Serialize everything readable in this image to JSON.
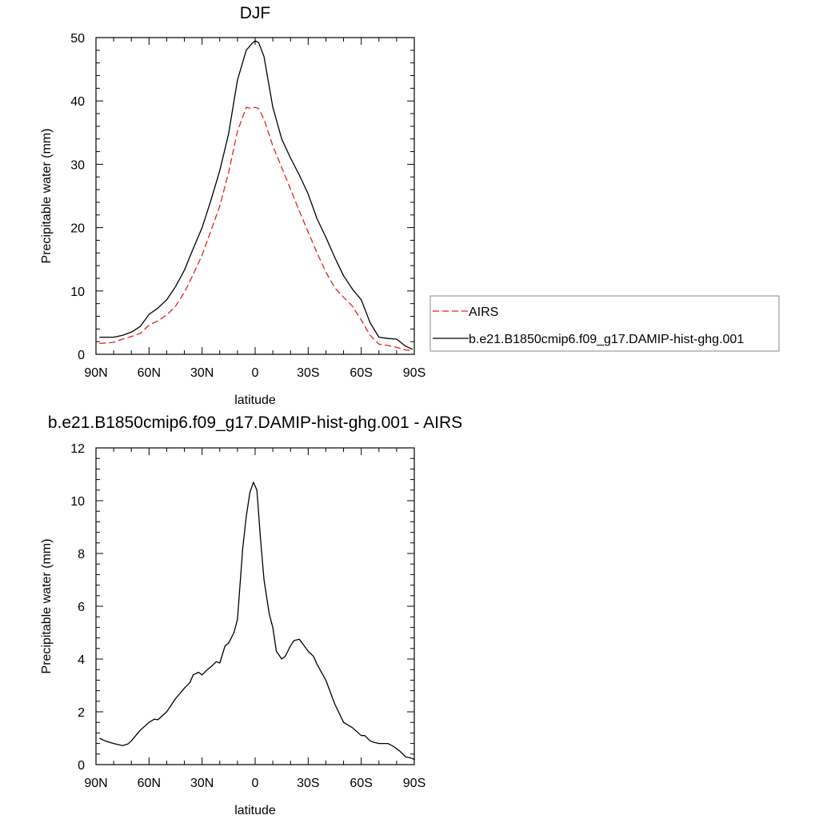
{
  "chart_data": [
    {
      "type": "line",
      "title": "DJF",
      "xlabel": "latitude",
      "ylabel": "Precipitable water (mm)",
      "xlim": [
        90,
        -90
      ],
      "ylim": [
        0,
        50
      ],
      "x_ticks": [
        {
          "value": 90,
          "label": "90N"
        },
        {
          "value": 60,
          "label": "60N"
        },
        {
          "value": 30,
          "label": "30N"
        },
        {
          "value": 0,
          "label": "0"
        },
        {
          "value": -30,
          "label": "30S"
        },
        {
          "value": -60,
          "label": "60S"
        },
        {
          "value": -90,
          "label": "90S"
        }
      ],
      "y_ticks": [
        0,
        10,
        20,
        30,
        40,
        50
      ],
      "legend_position": "right",
      "series": [
        {
          "name": "AIRS",
          "color": "#e8201f",
          "dash": "dashed",
          "x": [
            88,
            80,
            75,
            70,
            65,
            60,
            55,
            50,
            45,
            40,
            35,
            30,
            25,
            20,
            15,
            10,
            5,
            2,
            0,
            -2,
            -5,
            -10,
            -15,
            -20,
            -25,
            -30,
            -35,
            -40,
            -45,
            -50,
            -55,
            -60,
            -65,
            -70,
            -75,
            -80,
            -85,
            -89
          ],
          "values": [
            1.7,
            1.9,
            2.4,
            2.8,
            3.3,
            4.6,
            5.3,
            6.2,
            7.6,
            9.8,
            12.6,
            15.7,
            19.5,
            23.4,
            28.7,
            35.2,
            39.0,
            38.8,
            39.0,
            38.8,
            37.1,
            32.9,
            29.5,
            26.1,
            22.6,
            19.3,
            16.0,
            13.0,
            10.5,
            9.0,
            7.6,
            5.4,
            3.0,
            1.6,
            1.4,
            1.1,
            0.7,
            0.6
          ]
        },
        {
          "name": "b.e21.B1850cmip6.f09_g17.DAMIP-hist-ghg.001",
          "color": "#000000",
          "dash": "solid",
          "x": [
            88,
            80,
            75,
            70,
            65,
            60,
            55,
            50,
            45,
            40,
            35,
            30,
            25,
            20,
            15,
            10,
            5,
            2,
            0,
            -2,
            -5,
            -10,
            -15,
            -20,
            -25,
            -30,
            -35,
            -40,
            -45,
            -50,
            -55,
            -60,
            -65,
            -70,
            -75,
            -80,
            -85,
            -89
          ],
          "values": [
            2.7,
            2.7,
            3.0,
            3.5,
            4.4,
            6.3,
            7.3,
            8.6,
            10.7,
            13.3,
            16.7,
            20.0,
            24.3,
            29.0,
            34.8,
            43.3,
            48.0,
            49.0,
            49.5,
            49.2,
            47.0,
            39.0,
            34.0,
            31.0,
            28.3,
            25.3,
            21.4,
            18.5,
            15.3,
            12.4,
            10.3,
            8.6,
            5.0,
            2.7,
            2.5,
            2.4,
            1.3,
            0.8
          ]
        }
      ]
    },
    {
      "type": "line",
      "title": "b.e21.B1850cmip6.f09_g17.DAMIP-hist-ghg.001 - AIRS",
      "xlabel": "latitude",
      "ylabel": "Precipitable water (mm)",
      "xlim": [
        90,
        -90
      ],
      "ylim": [
        0,
        12
      ],
      "x_ticks": [
        {
          "value": 90,
          "label": "90N"
        },
        {
          "value": 60,
          "label": "60N"
        },
        {
          "value": 30,
          "label": "30N"
        },
        {
          "value": 0,
          "label": "0"
        },
        {
          "value": -30,
          "label": "30S"
        },
        {
          "value": -60,
          "label": "60S"
        },
        {
          "value": -90,
          "label": "90S"
        }
      ],
      "y_ticks": [
        0,
        2,
        4,
        6,
        8,
        10,
        12
      ],
      "series": [
        {
          "color": "#000000",
          "dash": "solid",
          "x": [
            88,
            85,
            80,
            75,
            72,
            70,
            65,
            60,
            57,
            55,
            50,
            45,
            40,
            37,
            35,
            32,
            30,
            27,
            25,
            22,
            20,
            17,
            15,
            12,
            10,
            7,
            5,
            3,
            1,
            -1,
            -3,
            -5,
            -8,
            -10,
            -12,
            -15,
            -17,
            -20,
            -22,
            -25,
            -30,
            -33,
            -35,
            -40,
            -45,
            -50,
            -55,
            -60,
            -62,
            -65,
            -67,
            -70,
            -75,
            -78,
            -80,
            -82,
            -85,
            -88,
            -90
          ],
          "values": [
            1.0,
            0.9,
            0.8,
            0.72,
            0.78,
            0.9,
            1.3,
            1.6,
            1.72,
            1.7,
            2.0,
            2.5,
            2.9,
            3.1,
            3.4,
            3.5,
            3.4,
            3.6,
            3.7,
            3.9,
            3.85,
            4.5,
            4.6,
            5.0,
            5.5,
            8.2,
            9.4,
            10.3,
            10.7,
            10.4,
            8.6,
            7.0,
            5.7,
            5.2,
            4.3,
            4.0,
            4.1,
            4.5,
            4.7,
            4.75,
            4.3,
            4.1,
            3.8,
            3.2,
            2.3,
            1.6,
            1.4,
            1.1,
            1.1,
            0.9,
            0.85,
            0.8,
            0.8,
            0.7,
            0.6,
            0.5,
            0.3,
            0.25,
            0.2
          ]
        }
      ]
    }
  ]
}
